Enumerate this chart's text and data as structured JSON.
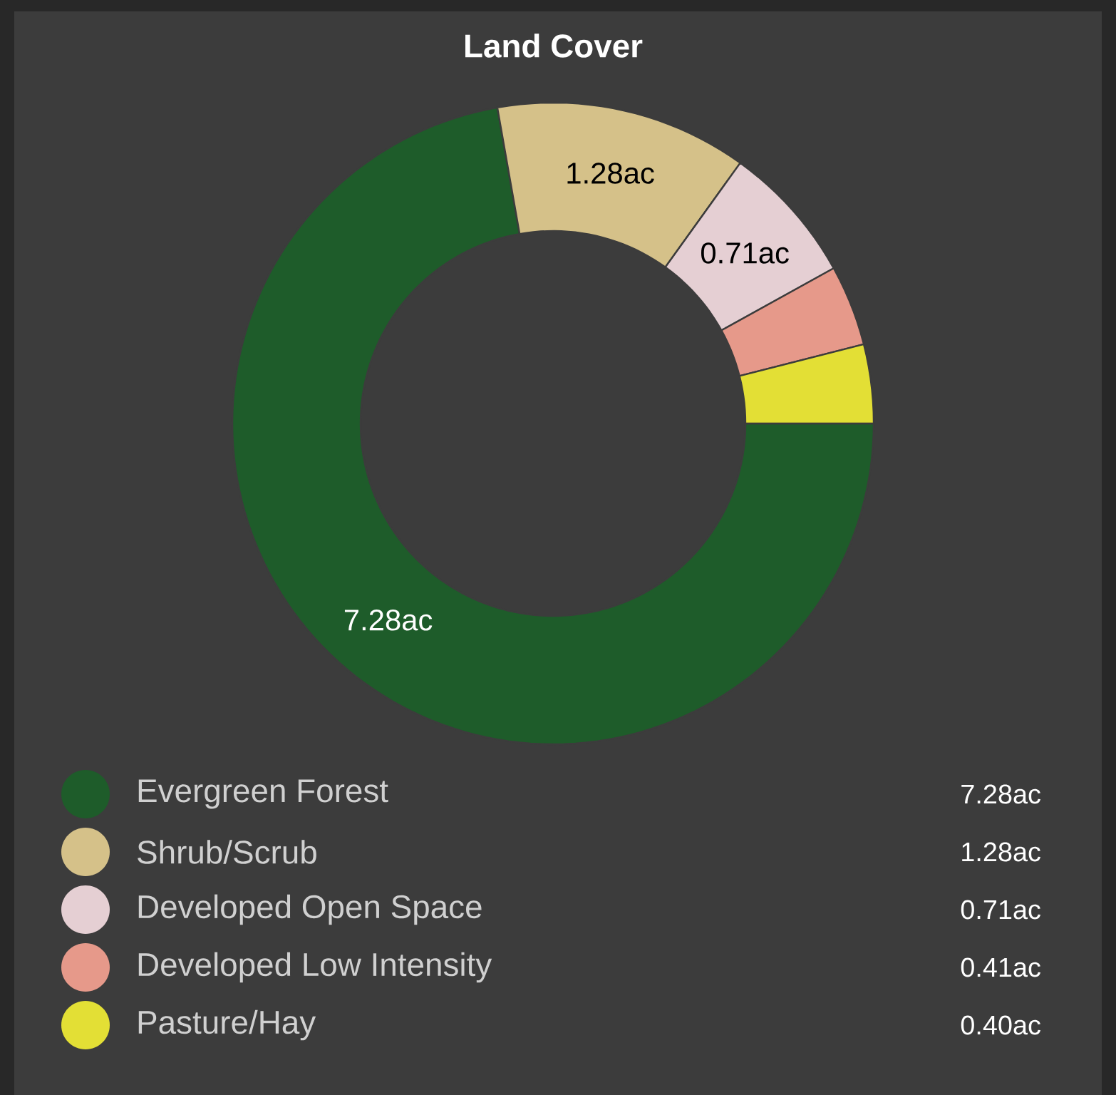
{
  "chart_data": {
    "type": "donut",
    "title": "Land Cover",
    "categories": [
      "Evergreen Forest",
      "Shrub/Scrub",
      "Developed Open Space",
      "Developed Low Intensity",
      "Pasture/Hay"
    ],
    "values": [
      7.28,
      1.28,
      0.71,
      0.41,
      0.4
    ],
    "colors": [
      "#1e5c2a",
      "#d5c189",
      "#e5cfd3",
      "#e6998a",
      "#e3df35"
    ],
    "value_labels": [
      "7.28ac",
      "1.28ac",
      "0.71ac",
      "0.41ac",
      "0.40ac"
    ],
    "annotations": [
      {
        "text": "7.28ac",
        "x": "Evergreen Forest"
      },
      {
        "text": "1.28ac",
        "x": "Shrub/Scrub"
      },
      {
        "text": "0.71ac",
        "x": "Developed Open Space"
      }
    ],
    "legend": "bottom"
  }
}
